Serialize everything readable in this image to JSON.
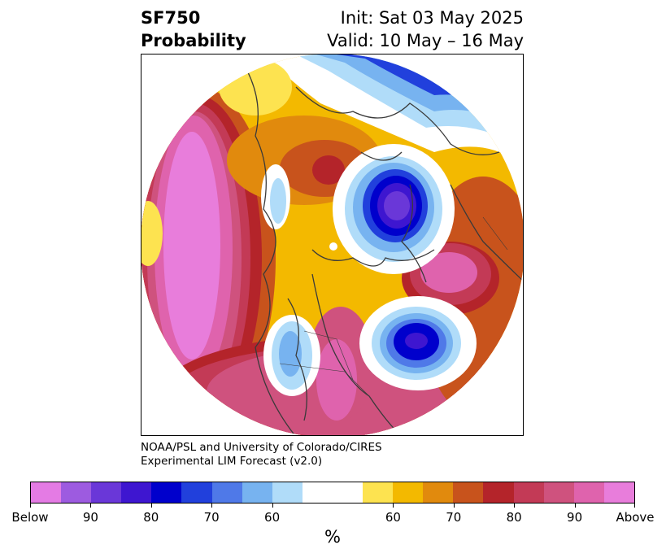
{
  "header": {
    "variable": "SF750",
    "field": "Probability",
    "init": "Init: Sat 03 May 2025",
    "valid": "Valid: 10 May – 16 May"
  },
  "credit": {
    "line1": "NOAA/PSL and University of Colorado/CIRES",
    "line2": "Experimental LIM Forecast (v2.0)"
  },
  "colorbar": {
    "unit": "%",
    "colors": [
      "#e47be4",
      "#9d5be0",
      "#6a37d8",
      "#3e16d0",
      "#0000cc",
      "#2140dc",
      "#4f79e8",
      "#77b3f0",
      "#b0dcf9",
      "#ffffff",
      "#ffffff",
      "#fde350",
      "#f3b900",
      "#e18a0d",
      "#c8531c",
      "#b4242a",
      "#c33a56",
      "#cf527e",
      "#df63ad",
      "#e87ddb"
    ],
    "tick_labels": [
      "Below",
      "90",
      "80",
      "70",
      "60",
      "60",
      "70",
      "80",
      "90",
      "Above"
    ]
  },
  "palette": {
    "below_strong": "#e47be4",
    "below_weak": "#b0dcf9",
    "above_weak": "#fde350",
    "above_strong": "#e87ddb",
    "coast": "#3a3a3a"
  }
}
